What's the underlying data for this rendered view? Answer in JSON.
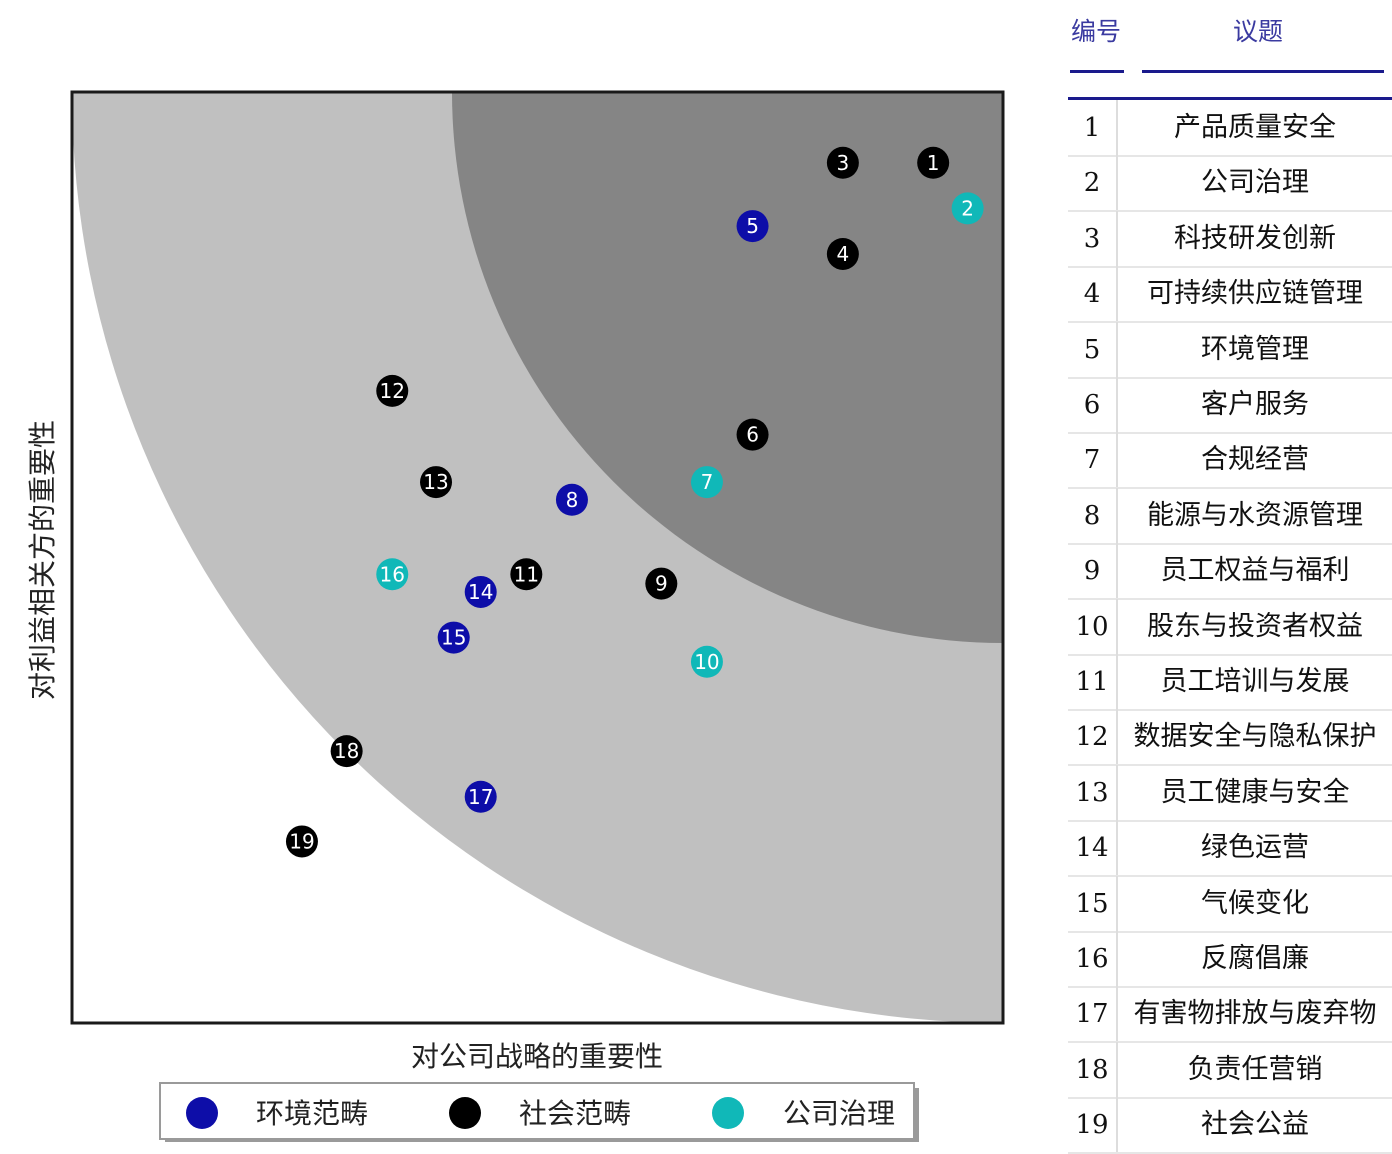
{
  "chart_data": {
    "type": "scatter",
    "title": "",
    "xlabel": "对公司战略的重要性",
    "ylabel": "对利益相关方的重要性",
    "xlim": [
      0,
      100
    ],
    "ylim": [
      0,
      100
    ],
    "zones": {
      "colors": [
        "#ffffff",
        "#c0c0c0",
        "#858585"
      ]
    },
    "categories": [
      {
        "key": "env",
        "name": "环境范畴",
        "color": "#0d0da8"
      },
      {
        "key": "soc",
        "name": "社会范畴",
        "color": "#000000"
      },
      {
        "key": "gov",
        "name": "公司治理",
        "color": "#10b8b8"
      }
    ],
    "points": [
      {
        "id": "1",
        "cat": "soc",
        "x": 92.5,
        "y": 92.4
      },
      {
        "id": "2",
        "cat": "gov",
        "x": 96.2,
        "y": 87.5
      },
      {
        "id": "3",
        "cat": "soc",
        "x": 82.8,
        "y": 92.4
      },
      {
        "id": "4",
        "cat": "soc",
        "x": 82.8,
        "y": 82.6
      },
      {
        "id": "5",
        "cat": "env",
        "x": 73.1,
        "y": 85.6
      },
      {
        "id": "6",
        "cat": "soc",
        "x": 73.1,
        "y": 63.2
      },
      {
        "id": "7",
        "cat": "gov",
        "x": 68.2,
        "y": 58.1
      },
      {
        "id": "8",
        "cat": "env",
        "x": 53.7,
        "y": 56.2
      },
      {
        "id": "9",
        "cat": "soc",
        "x": 63.3,
        "y": 47.2
      },
      {
        "id": "10",
        "cat": "gov",
        "x": 68.2,
        "y": 38.8
      },
      {
        "id": "11",
        "cat": "soc",
        "x": 48.8,
        "y": 48.2
      },
      {
        "id": "12",
        "cat": "soc",
        "x": 34.4,
        "y": 67.9
      },
      {
        "id": "13",
        "cat": "soc",
        "x": 39.1,
        "y": 58.1
      },
      {
        "id": "14",
        "cat": "env",
        "x": 43.9,
        "y": 46.3
      },
      {
        "id": "15",
        "cat": "env",
        "x": 41.0,
        "y": 41.4
      },
      {
        "id": "16",
        "cat": "gov",
        "x": 34.4,
        "y": 48.2
      },
      {
        "id": "17",
        "cat": "env",
        "x": 43.9,
        "y": 24.3
      },
      {
        "id": "18",
        "cat": "soc",
        "x": 29.5,
        "y": 29.2
      },
      {
        "id": "19",
        "cat": "soc",
        "x": 24.7,
        "y": 19.5
      }
    ]
  },
  "legend": [
    {
      "label": "环境范畴",
      "color": "#0d0da8"
    },
    {
      "label": "社会范畴",
      "color": "#000000"
    },
    {
      "label": "公司治理",
      "color": "#10b8b8"
    }
  ],
  "table": {
    "header_num": "编号",
    "header_topic": "议题",
    "rows": [
      {
        "num": "1",
        "topic": "产品质量安全"
      },
      {
        "num": "2",
        "topic": "公司治理"
      },
      {
        "num": "3",
        "topic": "科技研发创新"
      },
      {
        "num": "4",
        "topic": "可持续供应链管理"
      },
      {
        "num": "5",
        "topic": "环境管理"
      },
      {
        "num": "6",
        "topic": "客户服务"
      },
      {
        "num": "7",
        "topic": "合规经营"
      },
      {
        "num": "8",
        "topic": "能源与水资源管理"
      },
      {
        "num": "9",
        "topic": "员工权益与福利"
      },
      {
        "num": "10",
        "topic": "股东与投资者权益"
      },
      {
        "num": "11",
        "topic": "员工培训与发展"
      },
      {
        "num": "12",
        "topic": "数据安全与隐私保护"
      },
      {
        "num": "13",
        "topic": "员工健康与安全"
      },
      {
        "num": "14",
        "topic": "绿色运营"
      },
      {
        "num": "15",
        "topic": "气候变化"
      },
      {
        "num": "16",
        "topic": "反腐倡廉"
      },
      {
        "num": "17",
        "topic": "有害物排放与废弃物"
      },
      {
        "num": "18",
        "topic": "负责任营销"
      },
      {
        "num": "19",
        "topic": "社会公益"
      }
    ]
  }
}
